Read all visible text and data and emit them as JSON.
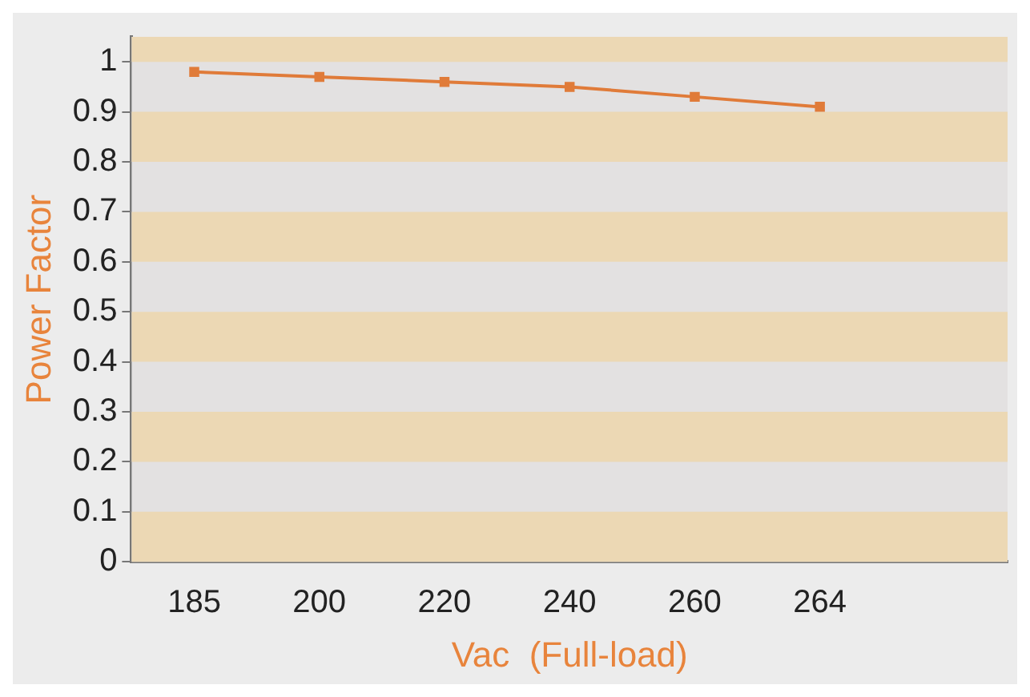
{
  "chart_data": {
    "type": "line",
    "xlabel": "Vac  (Full-load)",
    "ylabel": "Power Factor",
    "categories": [
      "185",
      "200",
      "220",
      "240",
      "260",
      "264",
      null
    ],
    "series": [
      {
        "color": "#e07b39",
        "values": [
          0.98,
          0.97,
          0.96,
          0.95,
          0.93,
          0.91,
          null
        ]
      }
    ],
    "ylim": [
      0,
      1.05
    ],
    "yticks": [
      0,
      0.1,
      0.2,
      0.3,
      0.4,
      0.5,
      0.6,
      0.7,
      0.8,
      0.9,
      1
    ],
    "bands": [
      {
        "axis": "y",
        "from": 0,
        "to": 0.1,
        "color": "#ecd8b4"
      },
      {
        "axis": "y",
        "from": 0.2,
        "to": 0.3,
        "color": "#ecd8b4"
      },
      {
        "axis": "y",
        "from": 0.4,
        "to": 0.5,
        "color": "#ecd8b4"
      },
      {
        "axis": "y",
        "from": 0.6,
        "to": 0.7,
        "color": "#ecd8b4"
      },
      {
        "axis": "y",
        "from": 0.8,
        "to": 0.9,
        "color": "#ecd8b4"
      },
      {
        "axis": "y",
        "from": 1,
        "to": 1.05,
        "color": "#ecd8b4"
      }
    ],
    "marker": "square",
    "line_style": "solid"
  }
}
